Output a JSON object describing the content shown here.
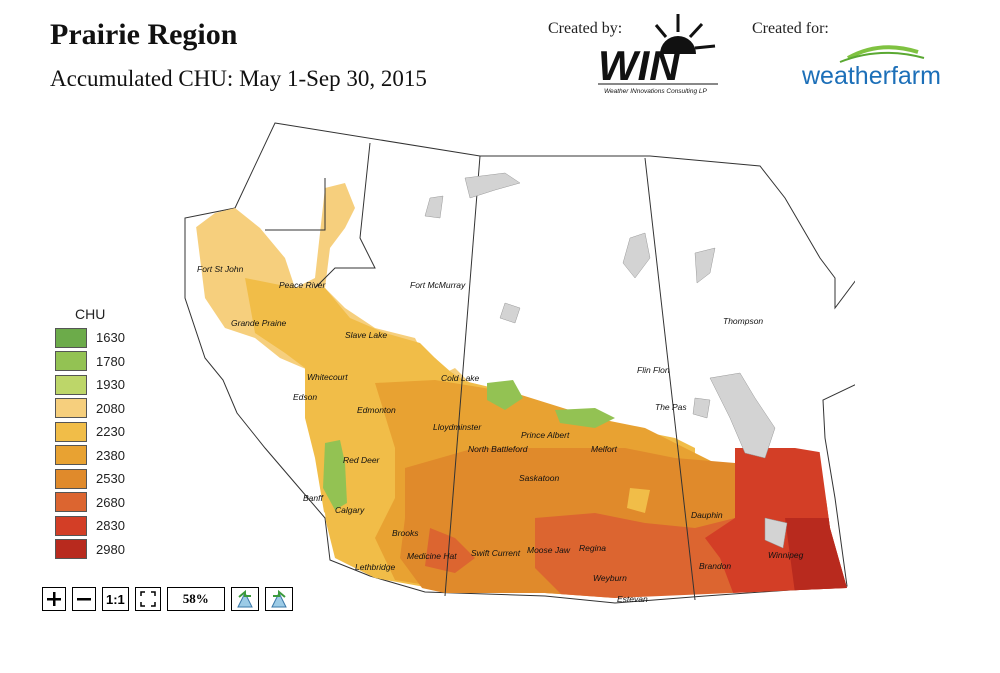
{
  "header": {
    "title": "Prairie Region",
    "subtitle": "Accumulated CHU: May 1-Sep 30, 2015"
  },
  "credits": {
    "created_by_label": "Created by:",
    "win_logo_text": "WIN",
    "win_tagline": "Weather INnovations Consulting LP",
    "created_for_label": "Created for:",
    "weatherfarm_text": "weatherfarm"
  },
  "legend": {
    "title": "CHU",
    "items": [
      {
        "label": "1630",
        "color": "#6cab4a"
      },
      {
        "label": "1780",
        "color": "#93c253"
      },
      {
        "label": "1930",
        "color": "#bdd669"
      },
      {
        "label": "2080",
        "color": "#f6cf7d"
      },
      {
        "label": "2230",
        "color": "#f1bd48"
      },
      {
        "label": "2380",
        "color": "#e8a232"
      },
      {
        "label": "2530",
        "color": "#e08a2b"
      },
      {
        "label": "2680",
        "color": "#dc6530"
      },
      {
        "label": "2830",
        "color": "#d33e26"
      },
      {
        "label": "2980",
        "color": "#b82a1e"
      }
    ]
  },
  "cities": [
    {
      "name": "Fort St John"
    },
    {
      "name": "Peace River"
    },
    {
      "name": "Grande Praine"
    },
    {
      "name": "Fort McMurray"
    },
    {
      "name": "Slave Lake"
    },
    {
      "name": "Whitecourt"
    },
    {
      "name": "Edson"
    },
    {
      "name": "Edmonton"
    },
    {
      "name": "Cold Lake"
    },
    {
      "name": "Lloydminster"
    },
    {
      "name": "Red Deer"
    },
    {
      "name": "North Battleford"
    },
    {
      "name": "Prince Albert"
    },
    {
      "name": "Melfort"
    },
    {
      "name": "Saskatoon"
    },
    {
      "name": "Banff"
    },
    {
      "name": "Calgary"
    },
    {
      "name": "Brooks"
    },
    {
      "name": "Medicine Hat"
    },
    {
      "name": "Swift Current"
    },
    {
      "name": "Moose Jaw"
    },
    {
      "name": "Regina"
    },
    {
      "name": "Lethbridge"
    },
    {
      "name": "Weyburn"
    },
    {
      "name": "Estevan"
    },
    {
      "name": "Brandon"
    },
    {
      "name": "Winnipeg"
    },
    {
      "name": "Dauphin"
    },
    {
      "name": "Flin Flon"
    },
    {
      "name": "The Pas"
    },
    {
      "name": "Thompson"
    }
  ],
  "toolbar": {
    "zoom_in_icon": "plus-icon",
    "zoom_out_icon": "minus-icon",
    "actual_size_label": "1:1",
    "fit_icon": "fit-frame-icon",
    "zoom_level": "58%",
    "prev_icon": "back-arrow-icon",
    "next_icon": "forward-arrow-icon"
  }
}
